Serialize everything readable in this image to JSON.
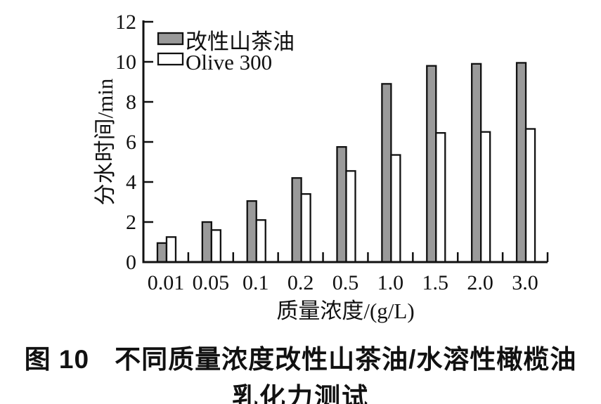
{
  "chart_data": {
    "type": "bar",
    "figure_label": "图 10",
    "caption_line1": "不同质量浓度改性山茶油/水溶性橄榄油",
    "caption_line2": "乳化力测试",
    "xlabel": "质量浓度/(g/L)",
    "ylabel": "分水时间/min",
    "categories": [
      "0.01",
      "0.05",
      "0.1",
      "0.2",
      "0.5",
      "1.0",
      "1.5",
      "2.0",
      "3.0"
    ],
    "series": [
      {
        "name": "改性山茶油",
        "color": "#9a9a9a",
        "values": [
          0.95,
          2.0,
          3.05,
          4.2,
          5.75,
          8.9,
          9.8,
          9.9,
          9.95
        ]
      },
      {
        "name": "Olive 300",
        "color": "#ffffff",
        "values": [
          1.25,
          1.6,
          2.1,
          3.4,
          4.55,
          5.35,
          6.45,
          6.5,
          6.65
        ]
      }
    ],
    "ylim": [
      0,
      12
    ],
    "yticks": [
      0,
      2,
      4,
      6,
      8,
      10,
      12
    ],
    "legend_position": "top-left",
    "grid": false,
    "axis_color": "#111111",
    "bar_border_color": "#111111"
  }
}
